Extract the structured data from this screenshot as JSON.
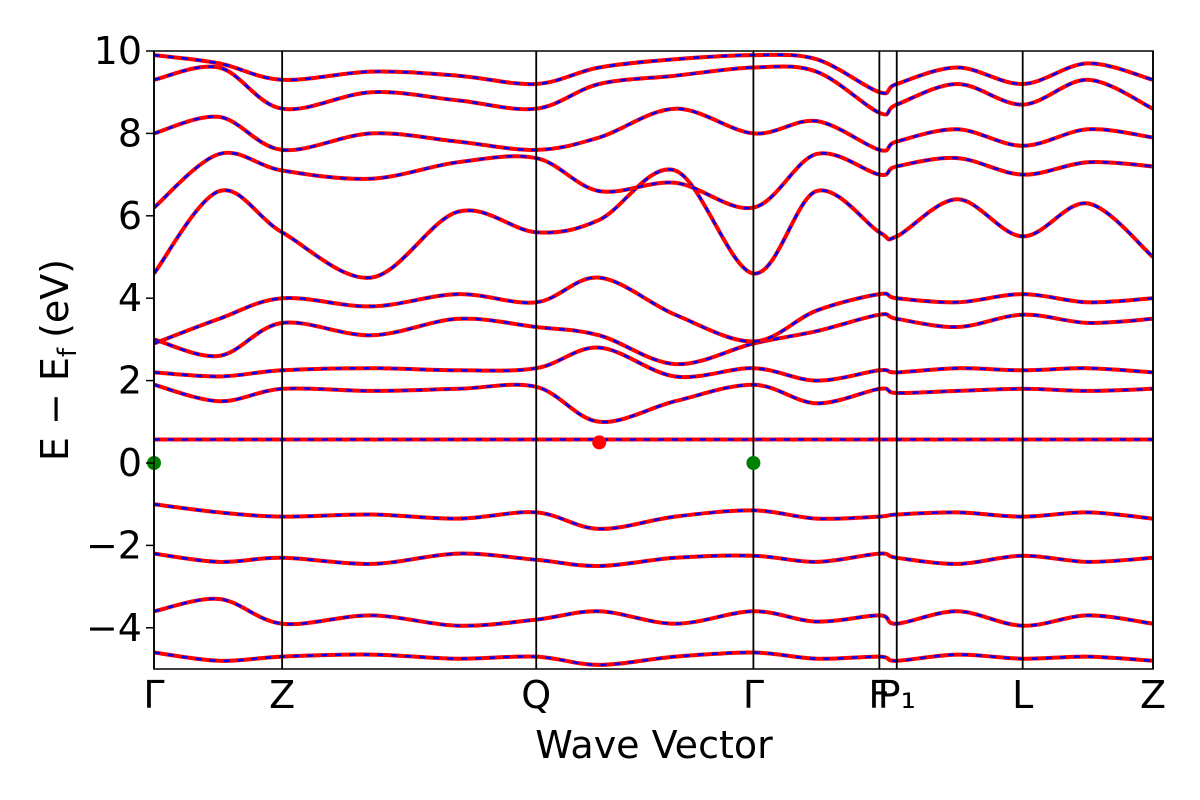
{
  "chart_data": {
    "type": "line",
    "xlabel": "Wave Vector",
    "ylabel": {
      "main": "E − E",
      "sub": "f",
      "unit": "(eV)"
    },
    "ylim": [
      -5,
      10
    ],
    "yticks": [
      -4,
      -2,
      0,
      2,
      4,
      6,
      8,
      10
    ],
    "ytick_labels": [
      "−4",
      "−2",
      "0",
      "2",
      "4",
      "6",
      "8",
      "10"
    ],
    "xlim": [
      0,
      4.6
    ],
    "kpoints": [
      {
        "x": 0.0,
        "label": "Γ"
      },
      {
        "x": 0.59,
        "label": "Z"
      },
      {
        "x": 1.76,
        "label": "Q"
      },
      {
        "x": 2.76,
        "label": "Γ"
      },
      {
        "x": 3.34,
        "label": "F"
      },
      {
        "x": 3.42,
        "label": "P₁"
      },
      {
        "x": 4.0,
        "label": "L"
      },
      {
        "x": 4.6,
        "label": "Z"
      }
    ],
    "colors": {
      "spin_up": "#ff0000",
      "spin_down": "#0000ff",
      "vbm": "#008000",
      "cbm": "#ff0000"
    },
    "series": [
      {
        "name": "",
        "style": "solid",
        "color": "#ff0000"
      },
      {
        "name": "",
        "style": "dashed",
        "color": "#0000ff"
      }
    ],
    "flat_band": {
      "energy": 0.57
    },
    "markers": [
      {
        "x": 0.0,
        "y": 0.0,
        "color": "#008000"
      },
      {
        "x": 2.76,
        "y": 0.0,
        "color": "#008000"
      },
      {
        "x": 2.05,
        "y": 0.5,
        "color": "#ff0000"
      }
    ],
    "bands": [
      {
        "x": [
          0.0,
          0.3,
          0.59,
          1.0,
          1.4,
          1.76,
          2.05,
          2.4,
          2.76,
          3.05,
          3.34,
          3.42,
          3.7,
          4.0,
          4.3,
          4.6
        ],
        "y": [
          -1.0,
          -1.2,
          -1.3,
          -1.25,
          -1.35,
          -1.2,
          -1.6,
          -1.3,
          -1.15,
          -1.35,
          -1.3,
          -1.25,
          -1.2,
          -1.3,
          -1.2,
          -1.35
        ]
      },
      {
        "x": [
          0.0,
          0.3,
          0.59,
          1.0,
          1.4,
          1.76,
          2.05,
          2.4,
          2.76,
          3.05,
          3.34,
          3.42,
          3.7,
          4.0,
          4.3,
          4.6
        ],
        "y": [
          -2.2,
          -2.4,
          -2.3,
          -2.45,
          -2.2,
          -2.35,
          -2.5,
          -2.3,
          -2.25,
          -2.4,
          -2.2,
          -2.3,
          -2.45,
          -2.25,
          -2.4,
          -2.3
        ]
      },
      {
        "x": [
          0.0,
          0.3,
          0.59,
          1.0,
          1.4,
          1.76,
          2.05,
          2.4,
          2.76,
          3.05,
          3.34,
          3.42,
          3.7,
          4.0,
          4.3,
          4.6
        ],
        "y": [
          -3.6,
          -3.3,
          -3.9,
          -3.7,
          -3.95,
          -3.8,
          -3.6,
          -3.9,
          -3.6,
          -3.85,
          -3.7,
          -3.9,
          -3.6,
          -3.95,
          -3.7,
          -3.9
        ]
      },
      {
        "x": [
          0.0,
          0.3,
          0.59,
          1.0,
          1.4,
          1.76,
          2.05,
          2.4,
          2.76,
          3.05,
          3.34,
          3.42,
          3.7,
          4.0,
          4.3,
          4.6
        ],
        "y": [
          -4.6,
          -4.8,
          -4.7,
          -4.65,
          -4.75,
          -4.7,
          -4.9,
          -4.7,
          -4.6,
          -4.75,
          -4.7,
          -4.8,
          -4.65,
          -4.75,
          -4.7,
          -4.8
        ]
      },
      {
        "x": [
          0.0,
          0.3,
          0.59,
          1.0,
          1.4,
          1.76,
          2.05,
          2.4,
          2.76,
          3.05,
          3.34,
          3.42,
          3.7,
          4.0,
          4.3,
          4.6
        ],
        "y": [
          1.9,
          1.5,
          1.8,
          1.75,
          1.8,
          1.85,
          1.0,
          1.5,
          1.9,
          1.45,
          1.8,
          1.7,
          1.75,
          1.8,
          1.75,
          1.8
        ]
      },
      {
        "x": [
          0.0,
          0.3,
          0.59,
          1.0,
          1.4,
          1.76,
          2.05,
          2.4,
          2.76,
          3.05,
          3.34,
          3.42,
          3.7,
          4.0,
          4.3,
          4.6
        ],
        "y": [
          2.2,
          2.1,
          2.25,
          2.3,
          2.25,
          2.3,
          2.8,
          2.1,
          2.3,
          2.0,
          2.25,
          2.2,
          2.3,
          2.25,
          2.3,
          2.2
        ]
      },
      {
        "x": [
          0.0,
          0.3,
          0.59,
          1.0,
          1.4,
          1.76,
          2.05,
          2.4,
          2.76,
          3.05,
          3.34,
          3.42,
          3.7,
          4.0,
          4.3,
          4.6
        ],
        "y": [
          3.0,
          2.6,
          3.4,
          3.1,
          3.5,
          3.3,
          3.1,
          2.4,
          2.9,
          3.2,
          3.6,
          3.5,
          3.3,
          3.6,
          3.4,
          3.5
        ]
      },
      {
        "x": [
          0.0,
          0.3,
          0.59,
          1.0,
          1.4,
          1.76,
          2.05,
          2.4,
          2.76,
          3.05,
          3.34,
          3.42,
          3.7,
          4.0,
          4.3,
          4.6
        ],
        "y": [
          2.9,
          3.5,
          4.0,
          3.8,
          4.1,
          3.9,
          4.5,
          3.6,
          2.95,
          3.7,
          4.1,
          4.0,
          3.9,
          4.1,
          3.9,
          4.0
        ]
      },
      {
        "x": [
          0.0,
          0.3,
          0.59,
          1.0,
          1.4,
          1.76,
          2.05,
          2.4,
          2.76,
          3.05,
          3.34,
          3.42,
          3.7,
          4.0,
          4.3,
          4.6
        ],
        "y": [
          4.6,
          6.6,
          5.6,
          4.5,
          6.1,
          5.6,
          5.9,
          7.1,
          4.6,
          6.6,
          5.6,
          5.5,
          6.4,
          5.5,
          6.3,
          5.0
        ]
      },
      {
        "x": [
          0.0,
          0.3,
          0.59,
          1.0,
          1.4,
          1.76,
          2.05,
          2.4,
          2.76,
          3.05,
          3.34,
          3.42,
          3.7,
          4.0,
          4.3,
          4.6
        ],
        "y": [
          6.2,
          7.5,
          7.1,
          6.9,
          7.3,
          7.4,
          6.6,
          6.8,
          6.2,
          7.5,
          7.0,
          7.2,
          7.4,
          7.0,
          7.3,
          7.2
        ]
      },
      {
        "x": [
          0.0,
          0.3,
          0.59,
          1.0,
          1.4,
          1.76,
          2.05,
          2.4,
          2.76,
          3.05,
          3.34,
          3.42,
          3.7,
          4.0,
          4.3,
          4.6
        ],
        "y": [
          8.0,
          8.4,
          7.6,
          8.0,
          7.8,
          7.6,
          7.9,
          8.6,
          8.0,
          8.3,
          7.6,
          7.8,
          8.1,
          7.7,
          8.1,
          7.9
        ]
      },
      {
        "x": [
          0.0,
          0.3,
          0.59,
          1.0,
          1.4,
          1.76,
          2.05,
          2.4,
          2.76,
          3.05,
          3.34,
          3.42,
          3.7,
          4.0,
          4.3,
          4.6
        ],
        "y": [
          9.3,
          9.6,
          8.6,
          9.0,
          8.8,
          8.6,
          9.2,
          9.4,
          9.6,
          9.5,
          8.5,
          8.7,
          9.2,
          8.7,
          9.3,
          8.6
        ]
      },
      {
        "x": [
          0.0,
          0.3,
          0.59,
          1.0,
          1.4,
          1.76,
          2.05,
          2.4,
          2.76,
          3.05,
          3.34,
          3.42,
          3.7,
          4.0,
          4.3,
          4.6
        ],
        "y": [
          9.9,
          9.7,
          9.3,
          9.5,
          9.4,
          9.2,
          9.6,
          9.8,
          9.9,
          9.8,
          9.0,
          9.2,
          9.6,
          9.2,
          9.7,
          9.3
        ]
      }
    ]
  }
}
